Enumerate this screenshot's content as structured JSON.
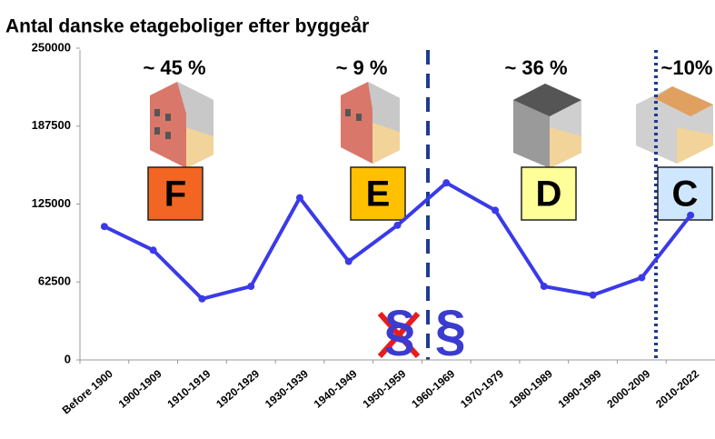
{
  "chart_data": {
    "type": "line",
    "title": "Antal danske etageboliger efter byggeår",
    "categories": [
      "Before 1900",
      "1900-1909",
      "1910-1919",
      "1920-1929",
      "1930-1939",
      "1940-1949",
      "1950-1959",
      "1960-1969",
      "1970-1979",
      "1980-1989",
      "1990-1999",
      "2000-2009",
      "2010-2022"
    ],
    "values": [
      107000,
      88000,
      49000,
      59000,
      130000,
      79000,
      108000,
      142000,
      120000,
      59000,
      52000,
      66000,
      116000
    ],
    "color": "#3a3ae8",
    "ylim": [
      0,
      250000
    ],
    "yticks": [
      0,
      62500,
      125000,
      187500,
      250000
    ],
    "annotations": [
      "~ 45 %",
      "~ 9 %",
      "~ 36 %",
      "~10%"
    ],
    "energy_labels": [
      {
        "label": "F",
        "color": "#f26522"
      },
      {
        "label": "E",
        "color": "#ffc000"
      },
      {
        "label": "D",
        "color": "#ffff99"
      },
      {
        "label": "C",
        "color": "#cfe6ff"
      }
    ],
    "section_marks": [
      "§",
      "§"
    ]
  }
}
